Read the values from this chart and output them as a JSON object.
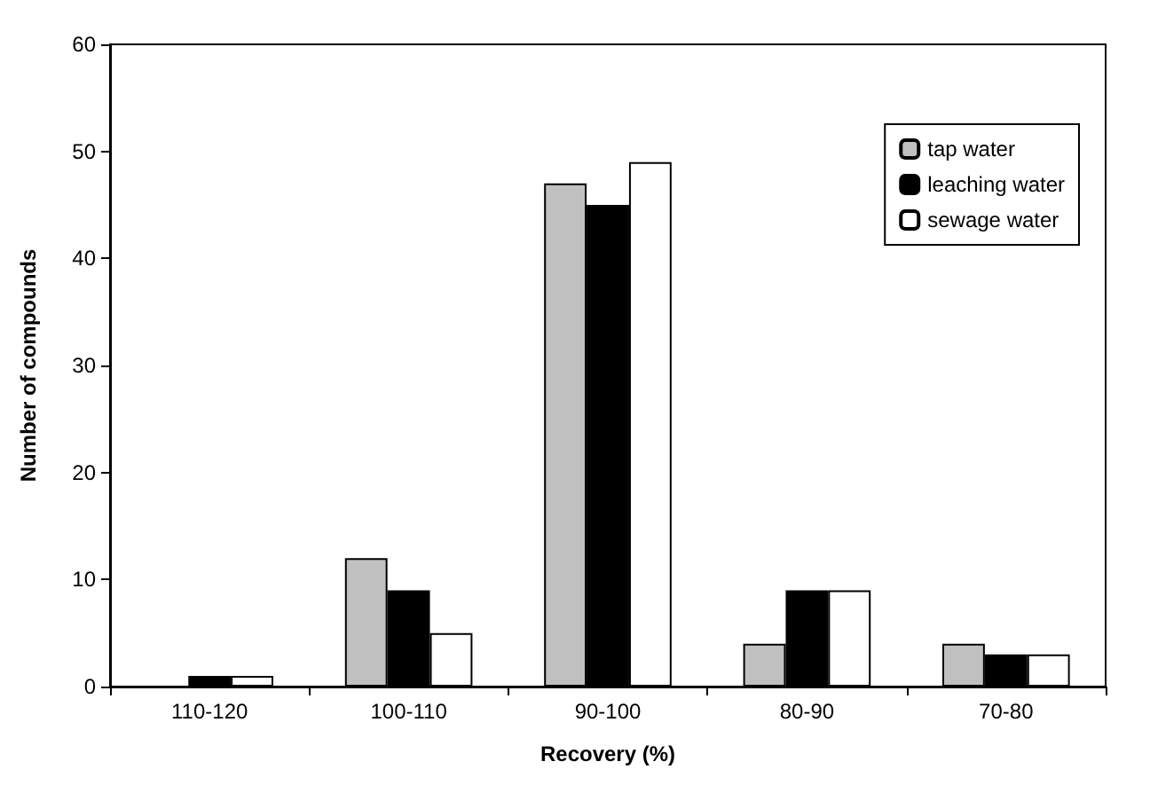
{
  "chart_data": {
    "type": "bar",
    "xlabel": "Recovery (%)",
    "ylabel": "Number of compounds",
    "categories": [
      "110-120",
      "100-110",
      "90-100",
      "80-90",
      "70-80"
    ],
    "series": [
      {
        "name": "tap water",
        "color": "#c0c0c0",
        "values": [
          0,
          12,
          47,
          4,
          4
        ]
      },
      {
        "name": "leaching water",
        "color": "#000000",
        "values": [
          1,
          9,
          45,
          9,
          3
        ]
      },
      {
        "name": "sewage water",
        "color": "#ffffff",
        "values": [
          1,
          5,
          49,
          9,
          3
        ]
      }
    ],
    "ylim": [
      0,
      60
    ],
    "yticks": [
      0,
      10,
      20,
      30,
      40,
      50,
      60
    ],
    "grid": false,
    "legend": "top right"
  }
}
